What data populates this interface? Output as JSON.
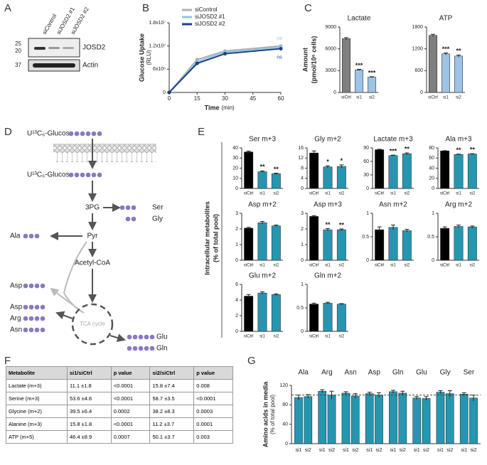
{
  "panel_letters": [
    "A",
    "B",
    "C",
    "D",
    "E",
    "F",
    "G"
  ],
  "blot": {
    "lanes": [
      "siControl",
      "siJOSD2 #1",
      "siJOSD2 #2"
    ],
    "markers": [
      "25",
      "20",
      "37"
    ],
    "proteins": [
      "JOSD2",
      "Actin"
    ]
  },
  "c_ylabel": "Amount",
  "c_ylabel_unit": "(pmol/10⁶ cells)",
  "e_ylabel": "Intracellular metabolites",
  "e_ylabel_unit": "(% of total pool)",
  "chart_data": [
    {
      "type": "line",
      "x": [
        0,
        15,
        30,
        60
      ],
      "xlim": [
        0,
        60
      ],
      "xticks": [
        0,
        15,
        30,
        45,
        60
      ],
      "ylim": [
        0,
        18000000
      ],
      "yticks": [
        0,
        {
          "value": 6000000,
          "label": "6x10⁶"
        },
        {
          "value": 12000000,
          "label": "1.2x10⁷"
        },
        {
          "value": 18000000,
          "label": "1.8x10⁷"
        }
      ],
      "xlabel": "Time",
      "xlabel_unit": "(min)",
      "ylabel": "Glucose Uptake",
      "ylabel_unit": "(RLU)",
      "series": [
        {
          "name": "siControl",
          "color": "#b0b0b0",
          "values": [
            0,
            8500000,
            10700000,
            12000000
          ]
        },
        {
          "name": "siJOSD2 #1",
          "color": "#8fc6e3",
          "values": [
            0,
            8000000,
            10400000,
            11700000
          ]
        },
        {
          "name": "siJOSD2 #2",
          "color": "#1f3c88",
          "values": [
            0,
            7500000,
            10000000,
            11300000
          ]
        }
      ],
      "annotations": [
        "ns",
        "ns"
      ]
    },
    {
      "type": "bar",
      "title": "Lactate",
      "categories": [
        "siCtrl",
        "si1",
        "si2"
      ],
      "values": [
        7400,
        3100,
        2100
      ],
      "errors": [
        150,
        80,
        60
      ],
      "colors": [
        "#7f7f7f",
        "#9dc3e6",
        "#9dc3e6"
      ],
      "ylim": [
        0,
        9000
      ],
      "yticks": [
        0,
        3000,
        6000,
        9000
      ],
      "annotations": [
        null,
        "***",
        "***"
      ]
    },
    {
      "type": "bar",
      "title": "ATP",
      "categories": [
        "siCtrl",
        "si1",
        "si2"
      ],
      "values": [
        1570,
        1060,
        1000
      ],
      "errors": [
        30,
        25,
        30
      ],
      "colors": [
        "#7f7f7f",
        "#9dc3e6",
        "#9dc3e6"
      ],
      "ylim": [
        0,
        1800
      ],
      "yticks": [
        0,
        600,
        1200,
        1800
      ],
      "annotations": [
        null,
        "***",
        "**"
      ]
    },
    {
      "type": "bar",
      "title": "Ser m+3",
      "categories": [
        "siCtrl",
        "si1",
        "si2"
      ],
      "values": [
        36,
        16.5,
        14.5
      ],
      "errors": [
        0.8,
        0.8,
        0.6
      ],
      "colors": [
        "#000000",
        "#2596b0",
        "#2596b0"
      ],
      "ylim": [
        0,
        40
      ],
      "yticks": [
        0,
        10,
        20,
        30,
        40
      ],
      "annotations": [
        null,
        "**",
        "**"
      ]
    },
    {
      "type": "bar",
      "title": "Gly m+2",
      "categories": [
        "siCtrl",
        "si1",
        "si2"
      ],
      "values": [
        14,
        8.5,
        8.7
      ],
      "errors": [
        0.8,
        0.4,
        0.6
      ],
      "colors": [
        "#000000",
        "#2596b0",
        "#2596b0"
      ],
      "ylim": [
        0,
        16
      ],
      "yticks": [
        0,
        4,
        8,
        12,
        16
      ],
      "annotations": [
        null,
        "*",
        "*"
      ]
    },
    {
      "type": "bar",
      "title": "Lactate m+3",
      "categories": [
        "siCtrl",
        "si1",
        "si2"
      ],
      "values": [
        86,
        73,
        77
      ],
      "errors": [
        1,
        1,
        2
      ],
      "colors": [
        "#000000",
        "#2596b0",
        "#2596b0"
      ],
      "ylim": [
        0,
        90
      ],
      "yticks": [
        0,
        30,
        60,
        90
      ],
      "annotations": [
        null,
        "***",
        "**"
      ]
    },
    {
      "type": "bar",
      "title": "Ala m+3",
      "categories": [
        "siCtrl",
        "si1",
        "si2"
      ],
      "values": [
        74,
        67,
        68
      ],
      "errors": [
        0.5,
        0.8,
        0.6
      ],
      "colors": [
        "#000000",
        "#2596b0",
        "#2596b0"
      ],
      "ylim": [
        0,
        80
      ],
      "yticks": [
        0,
        20,
        40,
        60,
        80
      ],
      "annotations": [
        null,
        "**",
        "**"
      ]
    },
    {
      "type": "bar",
      "title": "Asp m+2",
      "categories": [
        "siCtrl",
        "si1",
        "si2"
      ],
      "values": [
        2.05,
        2.4,
        2.2
      ],
      "errors": [
        0.05,
        0.08,
        0.05
      ],
      "colors": [
        "#000000",
        "#2596b0",
        "#2596b0"
      ],
      "ylim": [
        0,
        3
      ],
      "yticks": [
        0,
        1,
        2,
        3
      ]
    },
    {
      "type": "bar",
      "title": "Asp m+3",
      "categories": [
        "siCtrl",
        "si1",
        "si2"
      ],
      "values": [
        2.8,
        1.95,
        1.95
      ],
      "errors": [
        0.05,
        0.07,
        0.05
      ],
      "colors": [
        "#000000",
        "#2596b0",
        "#2596b0"
      ],
      "ylim": [
        0,
        3
      ],
      "yticks": [
        0,
        1,
        2,
        3
      ],
      "annotations": [
        null,
        "**",
        "**"
      ]
    },
    {
      "type": "bar",
      "title": "Asn m+2",
      "categories": [
        "siCtrl",
        "si1",
        "si2"
      ],
      "values": [
        0.65,
        0.7,
        0.63
      ],
      "errors": [
        0.06,
        0.05,
        0.03
      ],
      "colors": [
        "#000000",
        "#2596b0",
        "#2596b0"
      ],
      "ylim": [
        0,
        1
      ],
      "yticks": [
        0,
        0.5,
        1
      ]
    },
    {
      "type": "bar",
      "title": "Arg m+2",
      "categories": [
        "siCtrl",
        "si1",
        "si2"
      ],
      "values": [
        0.68,
        0.72,
        0.71
      ],
      "errors": [
        0.03,
        0.03,
        0.02
      ],
      "colors": [
        "#000000",
        "#2596b0",
        "#2596b0"
      ],
      "ylim": [
        0,
        1
      ],
      "yticks": [
        0,
        0.5,
        1
      ]
    },
    {
      "type": "bar",
      "title": "Glu m+2",
      "categories": [
        "siCtrl",
        "si1",
        "si2"
      ],
      "values": [
        4.5,
        4.9,
        4.7
      ],
      "errors": [
        0.2,
        0.15,
        0.1
      ],
      "colors": [
        "#000000",
        "#2596b0",
        "#2596b0"
      ],
      "ylim": [
        0,
        6
      ],
      "yticks": [
        0,
        2,
        4,
        6
      ]
    },
    {
      "type": "bar",
      "title": "Gln m+2",
      "categories": [
        "siCtrl",
        "si1",
        "si2"
      ],
      "values": [
        0.58,
        0.6,
        0.58
      ],
      "errors": [
        0.02,
        0.02,
        0.01
      ],
      "colors": [
        "#000000",
        "#2596b0",
        "#2596b0"
      ],
      "ylim": [
        0,
        1
      ],
      "yticks": [
        0,
        0.5,
        1
      ]
    },
    {
      "type": "grouped-bar",
      "ylabel": "Amino acids in media",
      "ylabel_unit": "(% of total pool)",
      "categories": [
        "Ala",
        "Arg",
        "Asn",
        "Asp",
        "Gln",
        "Glu",
        "Gly",
        "Ser"
      ],
      "series": [
        {
          "name": "si1",
          "color": "#2596b0",
          "values": [
            95,
            108,
            104,
            103,
            107,
            94,
            106,
            102
          ],
          "errors": [
            5,
            3,
            3,
            3,
            3,
            3,
            3,
            3
          ]
        },
        {
          "name": "si2",
          "color": "#2596b0",
          "values": [
            97,
            100,
            98,
            100,
            104,
            93,
            103,
            94
          ],
          "errors": [
            4,
            8,
            5,
            5,
            4,
            4,
            6,
            6
          ]
        }
      ],
      "ylim": [
        0,
        120
      ],
      "yticks": [
        0,
        40,
        80,
        120
      ],
      "reference_line": 100
    }
  ],
  "diagram": {
    "glucose_outside": "U¹³C₆-Glucose",
    "glucose_inside": "U¹³C₆-Glucose",
    "pg3": "3PG",
    "ser": "Ser",
    "gly": "Gly",
    "pyr": "Pyr",
    "ala": "Ala",
    "acetyl_coa": "Acetyl-CoA",
    "asp_pyr": "Asp",
    "asp": "Asp",
    "arg": "Arg",
    "asn": "Asn",
    "tca": "TCA cycle",
    "glu": "Glu",
    "gln": "Gln"
  },
  "table": {
    "header": [
      "Metabolite",
      "si1/siCtrl",
      "p value",
      "si2/siCtrl",
      "p value"
    ],
    "rows": [
      [
        "Lactate (m+3)",
        "11.1 ±1.8",
        "<0.0001",
        "15.8 ±7.4",
        "0.008"
      ],
      [
        "Serine (m+3)",
        "53.6 ±4.6",
        "<0.0001",
        "58.7 ±3.5",
        "<0.0001"
      ],
      [
        "Glycine (m+2)",
        "39.5 ±6.4",
        "0.0002",
        "38.2 ±8.3",
        "0.0003"
      ],
      [
        "Alanine (m+3)",
        "15.8 ±1.8",
        "<0.0001",
        "11.2 ±3.7",
        "0.0001"
      ],
      [
        "ATP (m+5)",
        "46.4 ±8.9",
        "0.0007",
        "50.1 ±3.7",
        "0.003"
      ]
    ]
  }
}
